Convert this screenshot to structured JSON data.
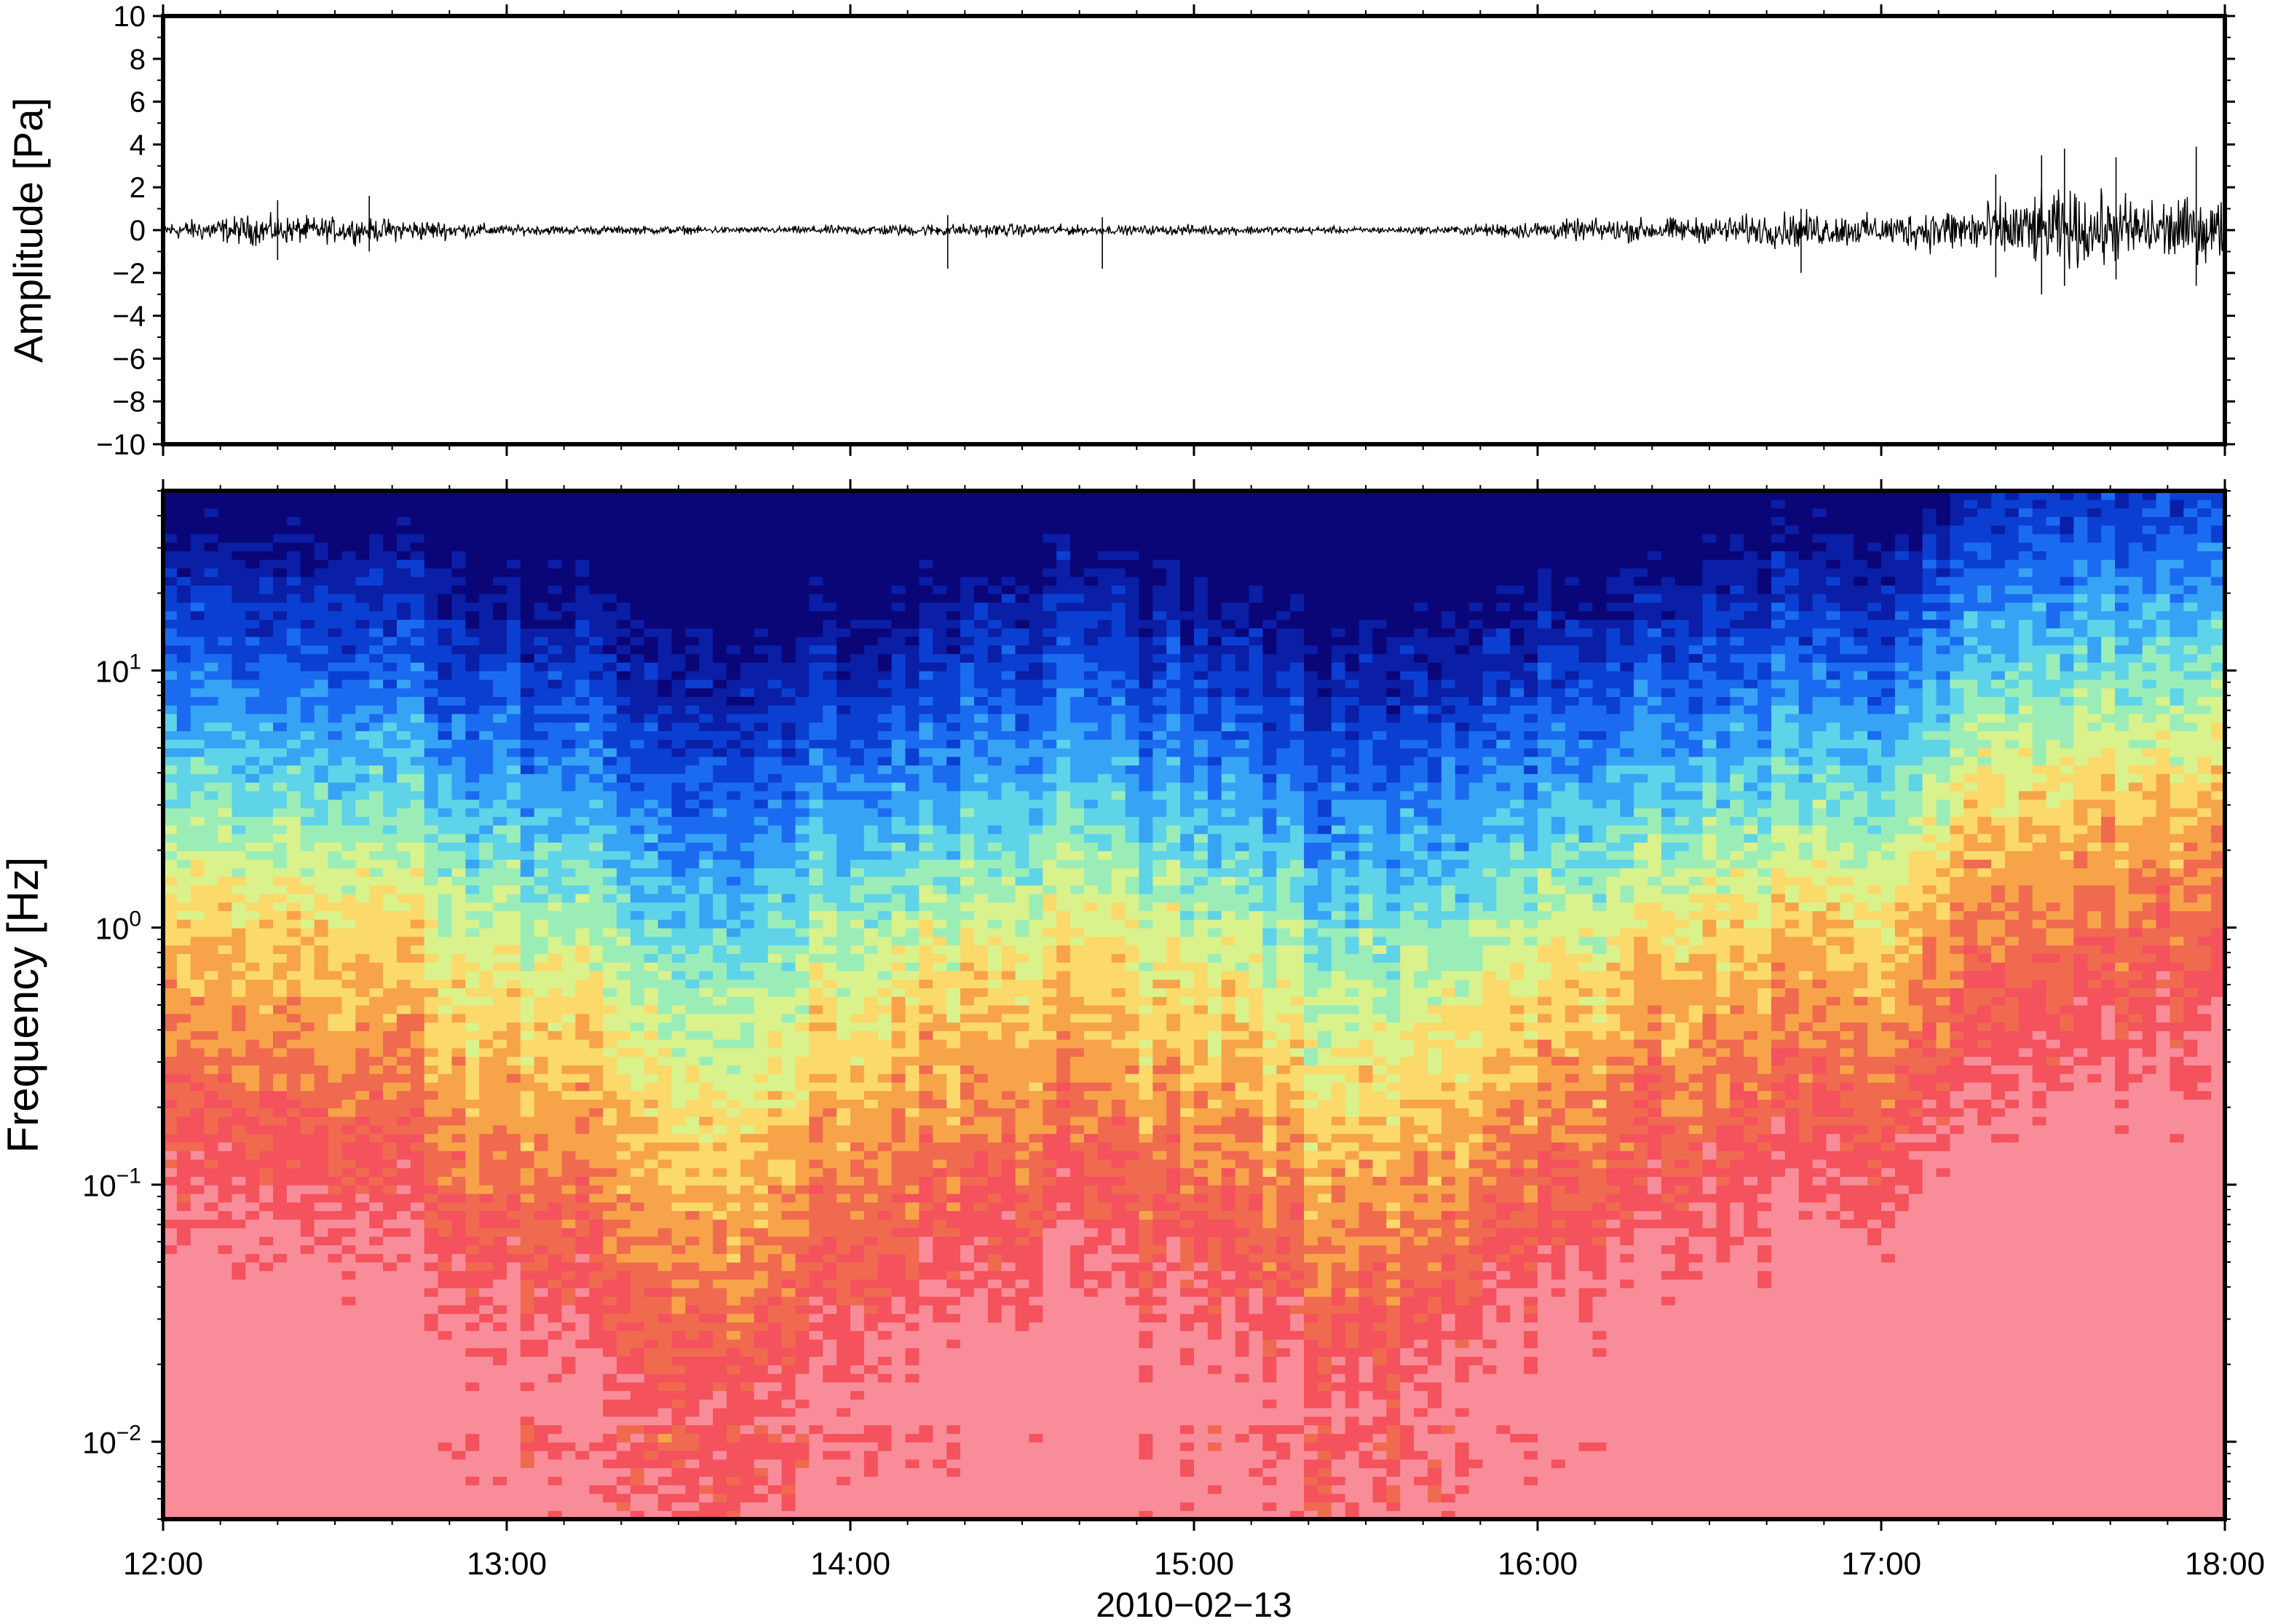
{
  "chart_data": [
    {
      "type": "line",
      "panel": "waveform",
      "ylabel": "Amplitude [Pa]",
      "ylim": [
        -10,
        10
      ],
      "yticks": [
        "10",
        "8",
        "6",
        "4",
        "2",
        "0",
        "−2",
        "−4",
        "−6",
        "−8",
        "−10"
      ],
      "ytick_values": [
        10,
        8,
        6,
        4,
        2,
        0,
        -2,
        -4,
        -6,
        -8,
        -10
      ],
      "xlim": [
        "12:00",
        "18:00"
      ],
      "grid": false,
      "envelope": {
        "x": [
          "12:00",
          "12:15",
          "12:30",
          "12:45",
          "13:00",
          "13:15",
          "13:30",
          "13:45",
          "14:00",
          "14:15",
          "14:30",
          "14:45",
          "15:00",
          "15:15",
          "15:30",
          "15:45",
          "16:00",
          "16:15",
          "16:30",
          "16:45",
          "17:00",
          "17:15",
          "17:30",
          "17:45",
          "18:00"
        ],
        "amplitude": [
          0.4,
          0.7,
          0.6,
          0.5,
          0.25,
          0.2,
          0.2,
          0.15,
          0.25,
          0.3,
          0.3,
          0.2,
          0.25,
          0.2,
          0.15,
          0.2,
          0.45,
          0.55,
          0.6,
          0.85,
          0.7,
          1.2,
          1.8,
          1.6,
          1.4
        ]
      },
      "spikes": [
        {
          "x": "12:20",
          "max": 1.4,
          "min": -1.4
        },
        {
          "x": "12:36",
          "max": 1.6,
          "min": -1.0
        },
        {
          "x": "14:17",
          "max": 0.7,
          "min": -1.8
        },
        {
          "x": "14:44",
          "max": 0.6,
          "min": -1.8
        },
        {
          "x": "16:46",
          "max": 1.0,
          "min": -2.0
        },
        {
          "x": "17:20",
          "max": 2.6,
          "min": -2.2
        },
        {
          "x": "17:28",
          "max": 3.5,
          "min": -3.0
        },
        {
          "x": "17:32",
          "max": 3.8,
          "min": -2.6
        },
        {
          "x": "17:41",
          "max": 3.4,
          "min": -2.3
        },
        {
          "x": "17:55",
          "max": 3.9,
          "min": -2.6
        }
      ]
    },
    {
      "type": "heatmap",
      "panel": "spectrogram",
      "ylabel": "Frequency [Hz]",
      "yscale": "log",
      "ylim": [
        0.005,
        50
      ],
      "yticks": [
        {
          "value": 10,
          "base": "10",
          "exp": "1"
        },
        {
          "value": 1,
          "base": "10",
          "exp": "0"
        },
        {
          "value": 0.1,
          "base": "10",
          "exp": "−1"
        },
        {
          "value": 0.01,
          "base": "10",
          "exp": "−2"
        }
      ],
      "xlabel": "2010−02−13",
      "xticks": [
        "12:00",
        "13:00",
        "14:00",
        "15:00",
        "16:00",
        "17:00",
        "18:00"
      ],
      "xtick_hours": [
        12,
        13,
        14,
        15,
        16,
        17,
        18
      ],
      "xlim_hours": [
        12,
        18
      ],
      "colormap": [
        "#0a0678",
        "#0a1ea6",
        "#0b3fd2",
        "#1b6bf0",
        "#37a3f5",
        "#5fd3e8",
        "#9bedb8",
        "#d9f28c",
        "#fbd96a",
        "#f7a34a",
        "#f06a4f",
        "#f4525c",
        "#f98c99"
      ],
      "columns_hours": [
        12.05,
        12.25,
        12.45,
        12.65,
        12.85,
        13.05,
        13.25,
        13.45,
        13.65,
        13.85,
        14.05,
        14.25,
        14.45,
        14.65,
        14.85,
        15.05,
        15.25,
        15.45,
        15.65,
        15.85,
        16.05,
        16.25,
        16.45,
        16.65,
        16.85,
        17.05,
        17.25,
        17.45,
        17.65,
        17.85
      ],
      "cutoff_frequency_hz": [
        9,
        10,
        9,
        10,
        8,
        7,
        6,
        5,
        4.5,
        5,
        5.5,
        6,
        7,
        10,
        7,
        6,
        5,
        4.5,
        4.5,
        5,
        6,
        7,
        8,
        9,
        9,
        8,
        20,
        25,
        25,
        25
      ],
      "low_frequency_intensity": [
        0.85,
        0.9,
        0.9,
        0.85,
        0.75,
        0.7,
        0.65,
        0.6,
        0.6,
        0.7,
        0.8,
        0.85,
        0.8,
        0.85,
        0.75,
        0.8,
        0.7,
        0.6,
        0.65,
        0.75,
        0.85,
        0.9,
        0.9,
        0.95,
        0.95,
        0.95,
        1.0,
        1.0,
        1.0,
        1.0
      ]
    }
  ]
}
